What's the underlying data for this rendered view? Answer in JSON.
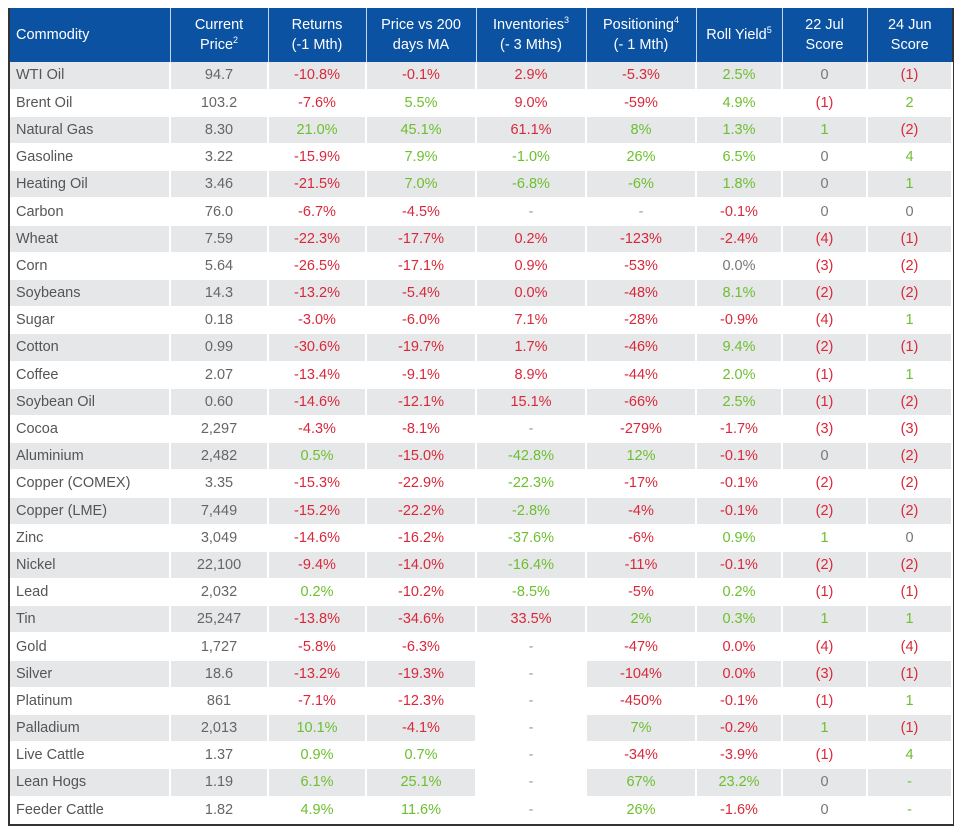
{
  "colors": {
    "header_bg": "#0b52a3",
    "positive": "#6cbf2e",
    "negative": "#d9283a",
    "neutral": "#777777",
    "stripe": "#e6e7e9"
  },
  "headers": [
    {
      "line1": "Commodity",
      "line2": "",
      "sup": ""
    },
    {
      "line1": "Current",
      "line2": "Price",
      "sup": "2"
    },
    {
      "line1": "Returns",
      "line2": "(-1 Mth)",
      "sup": ""
    },
    {
      "line1": "Price vs 200",
      "line2": "days MA",
      "sup": ""
    },
    {
      "line1": "Inventories",
      "line2": "(- 3 Mths)",
      "sup": "3",
      "sup_on_line1": true
    },
    {
      "line1": "Positioning",
      "line2": "(- 1 Mth)",
      "sup": "4",
      "sup_on_line1": true
    },
    {
      "line1": "Roll Yield",
      "line2": "",
      "sup": "5"
    },
    {
      "line1": "22 Jul",
      "line2": "Score",
      "sup": ""
    },
    {
      "line1": "24 Jun",
      "line2": "Score",
      "sup": ""
    }
  ],
  "rows": [
    {
      "commodity": "WTI Oil",
      "price": "94.7",
      "returns": [
        "-10.8%",
        "neg"
      ],
      "ma200": [
        "-0.1%",
        "neg"
      ],
      "inventories": [
        "2.9%",
        "neg"
      ],
      "positioning": [
        "-5.3%",
        "neg"
      ],
      "roll_yield": [
        "2.5%",
        "pos"
      ],
      "score_jul": [
        "0",
        "neu"
      ],
      "score_jun": [
        "(1)",
        "neg"
      ]
    },
    {
      "commodity": "Brent Oil",
      "price": "103.2",
      "returns": [
        "-7.6%",
        "neg"
      ],
      "ma200": [
        "5.5%",
        "pos"
      ],
      "inventories": [
        "9.0%",
        "neg"
      ],
      "positioning": [
        "-59%",
        "neg"
      ],
      "roll_yield": [
        "4.9%",
        "pos"
      ],
      "score_jul": [
        "(1)",
        "neg"
      ],
      "score_jun": [
        "2",
        "pos"
      ]
    },
    {
      "commodity": "Natural Gas",
      "price": "8.30",
      "returns": [
        "21.0%",
        "pos"
      ],
      "ma200": [
        "45.1%",
        "pos"
      ],
      "inventories": [
        "61.1%",
        "neg"
      ],
      "positioning": [
        "8%",
        "pos"
      ],
      "roll_yield": [
        "1.3%",
        "pos"
      ],
      "score_jul": [
        "1",
        "pos"
      ],
      "score_jun": [
        "(2)",
        "neg"
      ]
    },
    {
      "commodity": "Gasoline",
      "price": "3.22",
      "returns": [
        "-15.9%",
        "neg"
      ],
      "ma200": [
        "7.9%",
        "pos"
      ],
      "inventories": [
        "-1.0%",
        "pos"
      ],
      "positioning": [
        "26%",
        "pos"
      ],
      "roll_yield": [
        "6.5%",
        "pos"
      ],
      "score_jul": [
        "0",
        "neu"
      ],
      "score_jun": [
        "4",
        "pos"
      ]
    },
    {
      "commodity": "Heating Oil",
      "price": "3.46",
      "returns": [
        "-21.5%",
        "neg"
      ],
      "ma200": [
        "7.0%",
        "pos"
      ],
      "inventories": [
        "-6.8%",
        "pos"
      ],
      "positioning": [
        "-6%",
        "pos"
      ],
      "roll_yield": [
        "1.8%",
        "pos"
      ],
      "score_jul": [
        "0",
        "neu"
      ],
      "score_jun": [
        "1",
        "pos"
      ]
    },
    {
      "commodity": "Carbon",
      "price": "76.0",
      "returns": [
        "-6.7%",
        "neg"
      ],
      "ma200": [
        "-4.5%",
        "neg"
      ],
      "inventories": [
        "-",
        "dash"
      ],
      "positioning": [
        "-",
        "dash"
      ],
      "roll_yield": [
        "-0.1%",
        "neg"
      ],
      "score_jul": [
        "0",
        "neu"
      ],
      "score_jun": [
        "0",
        "neu"
      ]
    },
    {
      "commodity": "Wheat",
      "price": "7.59",
      "returns": [
        "-22.3%",
        "neg"
      ],
      "ma200": [
        "-17.7%",
        "neg"
      ],
      "inventories": [
        "0.2%",
        "neg"
      ],
      "positioning": [
        "-123%",
        "neg"
      ],
      "roll_yield": [
        "-2.4%",
        "neg"
      ],
      "score_jul": [
        "(4)",
        "neg"
      ],
      "score_jun": [
        "(1)",
        "neg"
      ]
    },
    {
      "commodity": "Corn",
      "price": "5.64",
      "returns": [
        "-26.5%",
        "neg"
      ],
      "ma200": [
        "-17.1%",
        "neg"
      ],
      "inventories": [
        "0.9%",
        "neg"
      ],
      "positioning": [
        "-53%",
        "neg"
      ],
      "roll_yield": [
        "0.0%",
        "neu"
      ],
      "score_jul": [
        "(3)",
        "neg"
      ],
      "score_jun": [
        "(2)",
        "neg"
      ]
    },
    {
      "commodity": "Soybeans",
      "price": "14.3",
      "returns": [
        "-13.2%",
        "neg"
      ],
      "ma200": [
        "-5.4%",
        "neg"
      ],
      "inventories": [
        "0.0%",
        "neg"
      ],
      "positioning": [
        "-48%",
        "neg"
      ],
      "roll_yield": [
        "8.1%",
        "pos"
      ],
      "score_jul": [
        "(2)",
        "neg"
      ],
      "score_jun": [
        "(2)",
        "neg"
      ]
    },
    {
      "commodity": "Sugar",
      "price": "0.18",
      "returns": [
        "-3.0%",
        "neg"
      ],
      "ma200": [
        "-6.0%",
        "neg"
      ],
      "inventories": [
        "7.1%",
        "neg"
      ],
      "positioning": [
        "-28%",
        "neg"
      ],
      "roll_yield": [
        "-0.9%",
        "neg"
      ],
      "score_jul": [
        "(4)",
        "neg"
      ],
      "score_jun": [
        "1",
        "pos"
      ]
    },
    {
      "commodity": "Cotton",
      "price": "0.99",
      "returns": [
        "-30.6%",
        "neg"
      ],
      "ma200": [
        "-19.7%",
        "neg"
      ],
      "inventories": [
        "1.7%",
        "neg"
      ],
      "positioning": [
        "-46%",
        "neg"
      ],
      "roll_yield": [
        "9.4%",
        "pos"
      ],
      "score_jul": [
        "(2)",
        "neg"
      ],
      "score_jun": [
        "(1)",
        "neg"
      ]
    },
    {
      "commodity": "Coffee",
      "price": "2.07",
      "returns": [
        "-13.4%",
        "neg"
      ],
      "ma200": [
        "-9.1%",
        "neg"
      ],
      "inventories": [
        "8.9%",
        "neg"
      ],
      "positioning": [
        "-44%",
        "neg"
      ],
      "roll_yield": [
        "2.0%",
        "pos"
      ],
      "score_jul": [
        "(1)",
        "neg"
      ],
      "score_jun": [
        "1",
        "pos"
      ]
    },
    {
      "commodity": "Soybean Oil",
      "price": "0.60",
      "returns": [
        "-14.6%",
        "neg"
      ],
      "ma200": [
        "-12.1%",
        "neg"
      ],
      "inventories": [
        "15.1%",
        "neg"
      ],
      "positioning": [
        "-66%",
        "neg"
      ],
      "roll_yield": [
        "2.5%",
        "pos"
      ],
      "score_jul": [
        "(1)",
        "neg"
      ],
      "score_jun": [
        "(2)",
        "neg"
      ]
    },
    {
      "commodity": "Cocoa",
      "price": "2,297",
      "returns": [
        "-4.3%",
        "neg"
      ],
      "ma200": [
        "-8.1%",
        "neg"
      ],
      "inventories": [
        "-",
        "dash"
      ],
      "positioning": [
        "-279%",
        "neg"
      ],
      "roll_yield": [
        "-1.7%",
        "neg"
      ],
      "score_jul": [
        "(3)",
        "neg"
      ],
      "score_jun": [
        "(3)",
        "neg"
      ]
    },
    {
      "commodity": "Aluminium",
      "price": "2,482",
      "returns": [
        "0.5%",
        "pos"
      ],
      "ma200": [
        "-15.0%",
        "neg"
      ],
      "inventories": [
        "-42.8%",
        "pos"
      ],
      "positioning": [
        "12%",
        "pos"
      ],
      "roll_yield": [
        "-0.1%",
        "neg"
      ],
      "score_jul": [
        "0",
        "neu"
      ],
      "score_jun": [
        "(2)",
        "neg"
      ]
    },
    {
      "commodity": "Copper (COMEX)",
      "price": "3.35",
      "returns": [
        "-15.3%",
        "neg"
      ],
      "ma200": [
        "-22.9%",
        "neg"
      ],
      "inventories": [
        "-22.3%",
        "pos"
      ],
      "positioning": [
        "-17%",
        "neg"
      ],
      "roll_yield": [
        "-0.1%",
        "neg"
      ],
      "score_jul": [
        "(2)",
        "neg"
      ],
      "score_jun": [
        "(2)",
        "neg"
      ]
    },
    {
      "commodity": "Copper (LME)",
      "price": "7,449",
      "returns": [
        "-15.2%",
        "neg"
      ],
      "ma200": [
        "-22.2%",
        "neg"
      ],
      "inventories": [
        "-2.8%",
        "pos"
      ],
      "positioning": [
        "-4%",
        "neg"
      ],
      "roll_yield": [
        "-0.1%",
        "neg"
      ],
      "score_jul": [
        "(2)",
        "neg"
      ],
      "score_jun": [
        "(2)",
        "neg"
      ]
    },
    {
      "commodity": "Zinc",
      "price": "3,049",
      "returns": [
        "-14.6%",
        "neg"
      ],
      "ma200": [
        "-16.2%",
        "neg"
      ],
      "inventories": [
        "-37.6%",
        "pos"
      ],
      "positioning": [
        "-6%",
        "neg"
      ],
      "roll_yield": [
        "0.9%",
        "pos"
      ],
      "score_jul": [
        "1",
        "pos"
      ],
      "score_jun": [
        "0",
        "neu"
      ]
    },
    {
      "commodity": "Nickel",
      "price": "22,100",
      "returns": [
        "-9.4%",
        "neg"
      ],
      "ma200": [
        "-14.0%",
        "neg"
      ],
      "inventories": [
        "-16.4%",
        "pos"
      ],
      "positioning": [
        "-11%",
        "neg"
      ],
      "roll_yield": [
        "-0.1%",
        "neg"
      ],
      "score_jul": [
        "(2)",
        "neg"
      ],
      "score_jun": [
        "(2)",
        "neg"
      ]
    },
    {
      "commodity": "Lead",
      "price": "2,032",
      "returns": [
        "0.2%",
        "pos"
      ],
      "ma200": [
        "-10.2%",
        "neg"
      ],
      "inventories": [
        "-8.5%",
        "pos"
      ],
      "positioning": [
        "-5%",
        "neg"
      ],
      "roll_yield": [
        "0.2%",
        "pos"
      ],
      "score_jul": [
        "(1)",
        "neg"
      ],
      "score_jun": [
        "(1)",
        "neg"
      ]
    },
    {
      "commodity": "Tin",
      "price": "25,247",
      "returns": [
        "-13.8%",
        "neg"
      ],
      "ma200": [
        "-34.6%",
        "neg"
      ],
      "inventories": [
        "33.5%",
        "neg"
      ],
      "positioning": [
        "2%",
        "pos"
      ],
      "roll_yield": [
        "0.3%",
        "pos"
      ],
      "score_jul": [
        "1",
        "pos"
      ],
      "score_jun": [
        "1",
        "pos"
      ]
    },
    {
      "commodity": "Gold",
      "price": "1,727",
      "returns": [
        "-5.8%",
        "neg"
      ],
      "ma200": [
        "-6.3%",
        "neg"
      ],
      "inventories": [
        "-",
        "dash"
      ],
      "positioning": [
        "-47%",
        "neg"
      ],
      "roll_yield": [
        "0.0%",
        "neg"
      ],
      "score_jul": [
        "(4)",
        "neg"
      ],
      "score_jun": [
        "(4)",
        "neg"
      ]
    },
    {
      "commodity": "Silver",
      "price": "18.6",
      "returns": [
        "-13.2%",
        "neg"
      ],
      "ma200": [
        "-19.3%",
        "neg"
      ],
      "inventories": [
        "-",
        "dash"
      ],
      "positioning": [
        "-104%",
        "neg"
      ],
      "roll_yield": [
        "0.0%",
        "neg"
      ],
      "score_jul": [
        "(3)",
        "neg"
      ],
      "score_jun": [
        "(1)",
        "neg"
      ]
    },
    {
      "commodity": "Platinum",
      "price": "861",
      "returns": [
        "-7.1%",
        "neg"
      ],
      "ma200": [
        "-12.3%",
        "neg"
      ],
      "inventories": [
        "-",
        "dash"
      ],
      "positioning": [
        "-450%",
        "neg"
      ],
      "roll_yield": [
        "-0.1%",
        "neg"
      ],
      "score_jul": [
        "(1)",
        "neg"
      ],
      "score_jun": [
        "1",
        "pos"
      ]
    },
    {
      "commodity": "Palladium",
      "price": "2,013",
      "returns": [
        "10.1%",
        "pos"
      ],
      "ma200": [
        "-4.1%",
        "neg"
      ],
      "inventories": [
        "-",
        "dash"
      ],
      "positioning": [
        "7%",
        "pos"
      ],
      "roll_yield": [
        "-0.2%",
        "neg"
      ],
      "score_jul": [
        "1",
        "pos"
      ],
      "score_jun": [
        "(1)",
        "neg"
      ]
    },
    {
      "commodity": "Live Cattle",
      "price": "1.37",
      "returns": [
        "0.9%",
        "pos"
      ],
      "ma200": [
        "0.7%",
        "pos"
      ],
      "inventories": [
        "-",
        "dash"
      ],
      "positioning": [
        "-34%",
        "neg"
      ],
      "roll_yield": [
        "-3.9%",
        "neg"
      ],
      "score_jul": [
        "(1)",
        "neg"
      ],
      "score_jun": [
        "4",
        "pos"
      ]
    },
    {
      "commodity": "Lean Hogs",
      "price": "1.19",
      "returns": [
        "6.1%",
        "pos"
      ],
      "ma200": [
        "25.1%",
        "pos"
      ],
      "inventories": [
        "-",
        "dash"
      ],
      "positioning": [
        "67%",
        "pos"
      ],
      "roll_yield": [
        "23.2%",
        "pos"
      ],
      "score_jul": [
        "0",
        "neu"
      ],
      "score_jun": [
        "-",
        "dashg"
      ]
    },
    {
      "commodity": "Feeder Cattle",
      "price": "1.82",
      "returns": [
        "4.9%",
        "pos"
      ],
      "ma200": [
        "11.6%",
        "pos"
      ],
      "inventories": [
        "-",
        "dash"
      ],
      "positioning": [
        "26%",
        "pos"
      ],
      "roll_yield": [
        "-1.6%",
        "neg"
      ],
      "score_jul": [
        "0",
        "neu"
      ],
      "score_jun": [
        "-",
        "dashg"
      ]
    }
  ]
}
